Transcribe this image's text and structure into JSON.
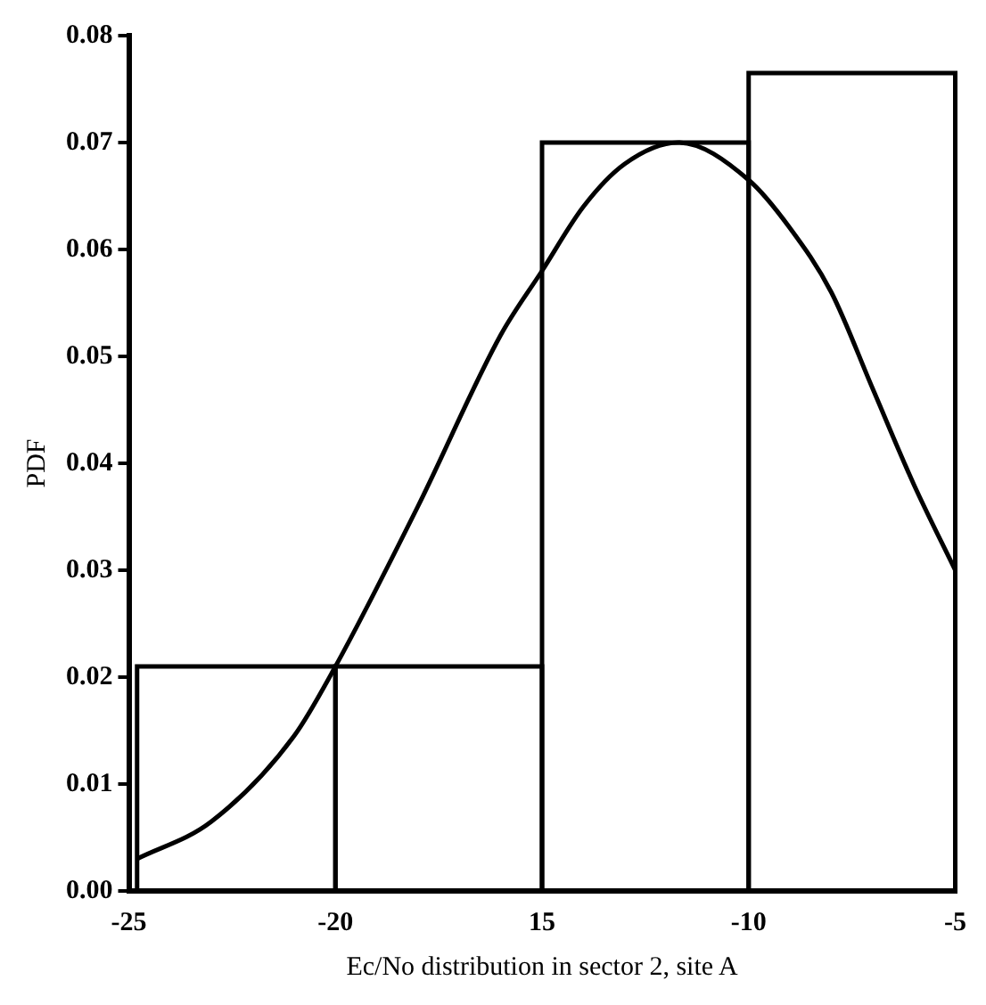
{
  "chart_data": {
    "type": "histogram",
    "xlabel": "Ec/No distribution in sector 2, site A",
    "ylabel": "PDF",
    "bins": [
      -24.8,
      -20,
      -15,
      -10,
      -5
    ],
    "values": [
      0.021,
      0.021,
      0.07,
      0.0765
    ],
    "color": "#000000",
    "series": [
      {
        "type": "line",
        "color": "#000000",
        "x": [
          -24.8,
          -23,
          -21,
          -20,
          -18,
          -16,
          -15,
          -14,
          -13,
          -11.7,
          -10,
          -9,
          -8,
          -7,
          -6,
          -5
        ],
        "values": [
          0.003,
          0.0065,
          0.0145,
          0.021,
          0.036,
          0.052,
          0.058,
          0.064,
          0.068,
          0.07,
          0.0665,
          0.062,
          0.056,
          0.047,
          0.038,
          0.03
        ]
      }
    ],
    "xlim": [
      -25,
      -5
    ],
    "xticks": [
      -25,
      -20,
      {
        "value": -15,
        "label": "15"
      },
      -10,
      -5
    ],
    "ylim": [
      0,
      0.08
    ],
    "yticks": [
      {
        "value": 0,
        "label": "0.00"
      },
      {
        "value": 0.01,
        "label": "0.01"
      },
      {
        "value": 0.02,
        "label": "0.02"
      },
      {
        "value": 0.03,
        "label": "0.03"
      },
      {
        "value": 0.04,
        "label": "0.04"
      },
      {
        "value": 0.05,
        "label": "0.05"
      },
      {
        "value": 0.06,
        "label": "0.06"
      },
      {
        "value": 0.07,
        "label": "0.07"
      },
      {
        "value": 0.08,
        "label": "0.08"
      }
    ],
    "grid": false,
    "legend": false,
    "marker": "none",
    "line_style": "solid"
  }
}
